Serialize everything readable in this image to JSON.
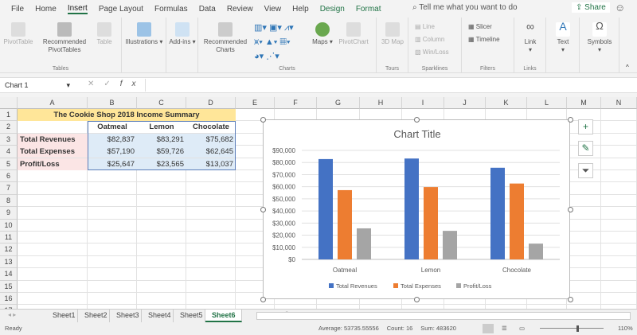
{
  "ribbon_tabs": [
    "File",
    "Home",
    "Insert",
    "Page Layout",
    "Formulas",
    "Data",
    "Review",
    "View",
    "Help",
    "Design",
    "Format"
  ],
  "active_tab": "Insert",
  "search_placeholder": "Tell me what you want to do",
  "share_label": "Share",
  "ribbon": {
    "tables": {
      "pivottable": "PivotTable",
      "recommended_pivottables": "Recommended PivotTables",
      "table": "Table",
      "label": "Tables"
    },
    "illustrations": "Illustrations",
    "addins": "Add-ins",
    "recommended_charts": "Recommended Charts",
    "maps": "Maps",
    "pivotchart": "PivotChart",
    "charts_label": "Charts",
    "map3d": "3D Map",
    "tours_label": "Tours",
    "sparklines": [
      "Line",
      "Column",
      "Win/Loss"
    ],
    "sparklines_label": "Sparklines",
    "slicer": "Slicer",
    "timeline": "Timeline",
    "filters_label": "Filters",
    "link": "Link",
    "links_label": "Links",
    "text": "Text",
    "symbols": "Symbols"
  },
  "name_box": "Chart 1",
  "formula": "",
  "columns": [
    "A",
    "B",
    "C",
    "D",
    "E",
    "F",
    "G",
    "H",
    "I",
    "J",
    "K",
    "L",
    "M",
    "N"
  ],
  "rows": [
    "1",
    "2",
    "3",
    "4",
    "5",
    "6",
    "7",
    "8",
    "9",
    "10",
    "11",
    "12",
    "13",
    "14",
    "15",
    "16",
    "17"
  ],
  "sheet": {
    "title": "The Cookie Shop 2018 Income Summary",
    "headers": [
      "Oatmeal",
      "Lemon",
      "Chocolate"
    ],
    "row_labels": [
      "Total Revenues",
      "Total Expenses",
      "Profit/Loss"
    ],
    "values": [
      [
        "$82,837",
        "$83,291",
        "$75,682"
      ],
      [
        "$57,190",
        "$59,726",
        "$62,645"
      ],
      [
        "$25,647",
        "$23,565",
        "$13,037"
      ]
    ]
  },
  "chart_data": {
    "type": "bar",
    "title": "Chart Title",
    "categories": [
      "Oatmeal",
      "Lemon",
      "Chocolate"
    ],
    "series": [
      {
        "name": "Total Revenues",
        "values": [
          82837,
          83291,
          75682
        ],
        "color": "#4472c4"
      },
      {
        "name": "Total Expenses",
        "values": [
          57190,
          59726,
          62645
        ],
        "color": "#ed7d31"
      },
      {
        "name": "Profit/Loss",
        "values": [
          25647,
          23565,
          13037
        ],
        "color": "#a5a5a5"
      }
    ],
    "yticks": [
      "$0",
      "$10,000",
      "$20,000",
      "$30,000",
      "$40,000",
      "$50,000",
      "$60,000",
      "$70,000",
      "$80,000",
      "$90,000"
    ],
    "ylim": [
      0,
      90000
    ],
    "grid": true,
    "legend": "bottom"
  },
  "sheet_tabs": [
    "Sheet1",
    "Sheet2",
    "Sheet3",
    "Sheet4",
    "Sheet5",
    "Sheet6"
  ],
  "active_sheet": "Sheet6",
  "status": {
    "ready": "Ready",
    "average": "Average: 53735.55556",
    "count": "Count: 16",
    "sum": "Sum: 483620",
    "zoom": "110%"
  }
}
